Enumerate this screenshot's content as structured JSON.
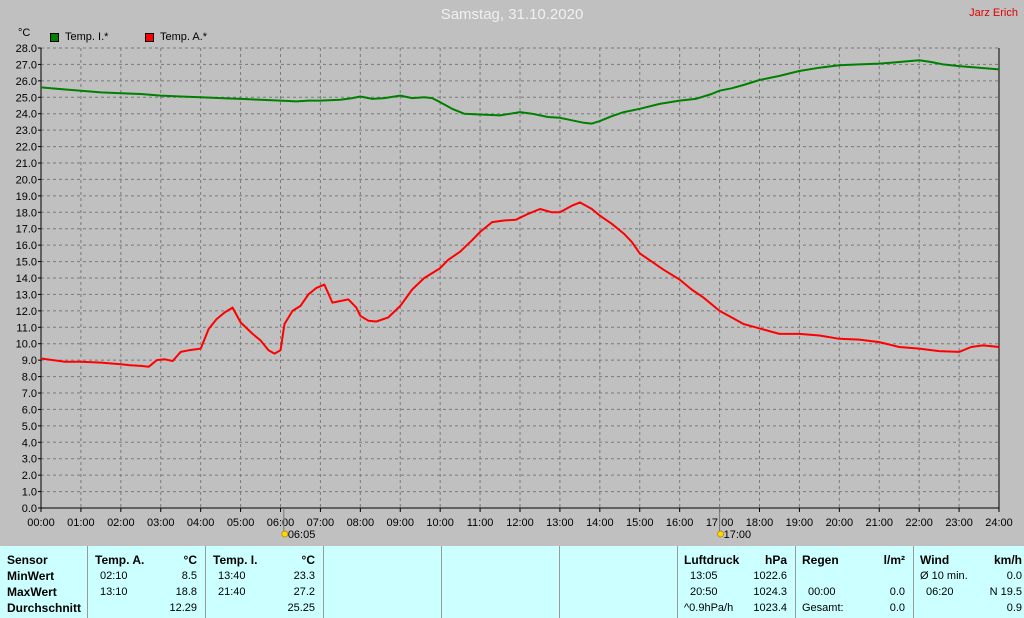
{
  "header": {
    "title": "Samstag, 31.10.2020",
    "author": "Jarz Erich",
    "unit": "°C"
  },
  "legend": [
    {
      "label": "Temp. I.*",
      "color": "#008000"
    },
    {
      "label": "Temp. A.*",
      "color": "#ff0000"
    }
  ],
  "chart_data": {
    "type": "line",
    "ylim": [
      0,
      28
    ],
    "y_step": 1,
    "y_ticks": [
      "0.0",
      "1.0",
      "2.0",
      "3.0",
      "4.0",
      "5.0",
      "6.0",
      "7.0",
      "8.0",
      "9.0",
      "10.0",
      "11.0",
      "12.0",
      "13.0",
      "14.0",
      "15.0",
      "16.0",
      "17.0",
      "18.0",
      "19.0",
      "20.0",
      "21.0",
      "22.0",
      "23.0",
      "24.0",
      "25.0",
      "26.0",
      "27.0",
      "28.0"
    ],
    "x_ticks": [
      "00:00",
      "01:00",
      "02:00",
      "03:00",
      "04:00",
      "05:00",
      "06:00",
      "07:00",
      "08:00",
      "09:00",
      "10:00",
      "11:00",
      "12:00",
      "13:00",
      "14:00",
      "15:00",
      "16:00",
      "17:00",
      "18:00",
      "19:00",
      "20:00",
      "21:00",
      "22:00",
      "23:00",
      "24:00"
    ],
    "xlim": [
      0,
      24
    ],
    "grid": true,
    "sun_markers": [
      {
        "hour": 6.083,
        "label": "06:05"
      },
      {
        "hour": 17.0,
        "label": "17:00"
      }
    ],
    "series": [
      {
        "name": "Temp. I.*",
        "color": "#008000",
        "x": [
          0,
          0.5,
          1,
          1.5,
          2,
          2.5,
          3,
          3.5,
          4,
          4.5,
          5,
          5.5,
          6,
          6.4,
          6.7,
          7,
          7.5,
          7.8,
          8,
          8.3,
          8.6,
          9,
          9.3,
          9.6,
          9.8,
          10,
          10.3,
          10.6,
          11,
          11.5,
          12,
          12.3,
          12.7,
          13,
          13.3,
          13.6,
          13.8,
          14,
          14.3,
          14.6,
          15,
          15.5,
          16,
          16.4,
          16.8,
          17,
          17.3,
          17.6,
          18,
          18.5,
          19,
          19.5,
          20,
          20.5,
          21,
          21.5,
          22,
          22.3,
          22.6,
          23,
          23.5,
          24
        ],
        "y": [
          25.6,
          25.5,
          25.4,
          25.3,
          25.25,
          25.2,
          25.1,
          25.05,
          25.0,
          24.95,
          24.9,
          24.85,
          24.8,
          24.75,
          24.8,
          24.8,
          24.85,
          24.95,
          25.05,
          24.9,
          24.95,
          25.1,
          24.95,
          25.0,
          24.95,
          24.7,
          24.3,
          24.0,
          23.95,
          23.9,
          24.1,
          24.0,
          23.8,
          23.75,
          23.6,
          23.45,
          23.4,
          23.55,
          23.85,
          24.1,
          24.3,
          24.6,
          24.8,
          24.9,
          25.2,
          25.4,
          25.55,
          25.75,
          26.05,
          26.3,
          26.6,
          26.8,
          26.95,
          27.0,
          27.05,
          27.15,
          27.25,
          27.15,
          27.0,
          26.9,
          26.8,
          26.7
        ]
      },
      {
        "name": "Temp. A.*",
        "color": "#ff0000",
        "x": [
          0,
          0.3,
          0.6,
          1,
          1.5,
          2,
          2.2,
          2.5,
          2.7,
          2.9,
          3.1,
          3.3,
          3.5,
          3.7,
          4.0,
          4.2,
          4.4,
          4.6,
          4.8,
          5.0,
          5.3,
          5.5,
          5.7,
          5.85,
          6.0,
          6.1,
          6.3,
          6.5,
          6.7,
          6.9,
          7.1,
          7.3,
          7.5,
          7.7,
          7.9,
          8.0,
          8.2,
          8.4,
          8.7,
          9.0,
          9.3,
          9.6,
          9.8,
          10.0,
          10.2,
          10.5,
          10.8,
          11.0,
          11.3,
          11.6,
          11.9,
          12.2,
          12.5,
          12.8,
          13.0,
          13.3,
          13.5,
          13.8,
          14.0,
          14.3,
          14.6,
          14.8,
          15.0,
          15.3,
          15.6,
          16.0,
          16.3,
          16.6,
          17.0,
          17.3,
          17.6,
          17.9,
          18.2,
          18.5,
          19.0,
          19.5,
          20.0,
          20.5,
          21.0,
          21.5,
          22.0,
          22.5,
          23.0,
          23.3,
          23.6,
          24.0
        ],
        "y": [
          9.1,
          9.0,
          8.9,
          8.9,
          8.85,
          8.75,
          8.7,
          8.65,
          8.6,
          9.0,
          9.05,
          8.95,
          9.5,
          9.6,
          9.7,
          10.9,
          11.5,
          11.9,
          12.2,
          11.3,
          10.6,
          10.2,
          9.6,
          9.4,
          9.6,
          11.2,
          12.0,
          12.3,
          13.0,
          13.4,
          13.6,
          12.5,
          12.6,
          12.7,
          12.2,
          11.7,
          11.4,
          11.35,
          11.6,
          12.3,
          13.3,
          14.0,
          14.3,
          14.6,
          15.1,
          15.6,
          16.3,
          16.8,
          17.4,
          17.5,
          17.55,
          17.9,
          18.2,
          18.0,
          18.0,
          18.4,
          18.6,
          18.2,
          17.8,
          17.3,
          16.7,
          16.2,
          15.5,
          15.0,
          14.5,
          13.9,
          13.3,
          12.8,
          12.0,
          11.6,
          11.2,
          11.0,
          10.8,
          10.6,
          10.6,
          10.5,
          10.3,
          10.25,
          10.1,
          9.8,
          9.7,
          9.55,
          9.5,
          9.8,
          9.9,
          9.8
        ]
      }
    ]
  },
  "stats": {
    "sensor": {
      "header": "Sensor",
      "rows": [
        "MinWert",
        "MaxWert",
        "Durchschnitt"
      ]
    },
    "temp_a": {
      "header": "Temp. A.",
      "unit": "°C",
      "min_time": "02:10",
      "min_val": "8.5",
      "max_time": "13:10",
      "max_val": "18.8",
      "avg": "12.29"
    },
    "temp_i": {
      "header": "Temp. I.",
      "unit": "°C",
      "min_time": "13:40",
      "min_val": "23.3",
      "max_time": "21:40",
      "max_val": "27.2",
      "avg": "25.25"
    },
    "pressure": {
      "header": "Luftdruck",
      "unit": "hPa",
      "min_time": "13:05",
      "min_val": "1022.6",
      "max_time": "20:50",
      "max_val": "1024.3",
      "trend_label": "^0.9hPa/h",
      "trend_val": "1023.4"
    },
    "rain": {
      "header": "Regen",
      "unit": "l/m²",
      "time": "00:00",
      "val": "0.0",
      "total_label": "Gesamt:",
      "total_val": "0.0"
    },
    "wind": {
      "header": "Wind",
      "unit": "km/h",
      "avg_label": "Ø 10 min.",
      "avg_val": "0.0",
      "max_time": "06:20",
      "max_val": "N 19.5",
      "extra_val": "0.9"
    }
  }
}
